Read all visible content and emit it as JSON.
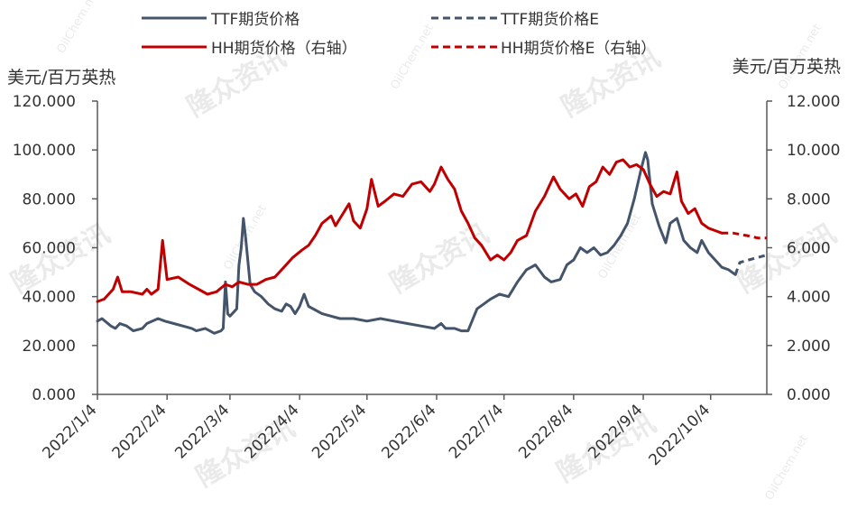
{
  "chart_data": {
    "type": "line",
    "left_axis_title": "美元/百万英热",
    "right_axis_title": "美元/百万英热",
    "left_ylim": [
      0,
      120
    ],
    "right_ylim": [
      0,
      12
    ],
    "left_ticks": [
      "0.000",
      "20.000",
      "40.000",
      "60.000",
      "80.000",
      "100.000",
      "120.000"
    ],
    "right_ticks": [
      "0.000",
      "2.000",
      "4.000",
      "6.000",
      "8.000",
      "10.000",
      "12.000"
    ],
    "x_range": [
      "2022-01-04",
      "2022-10-29"
    ],
    "x_tick_labels": [
      "2022/1/4",
      "2022/2/4",
      "2022/3/4",
      "2022/4/4",
      "2022/5/4",
      "2022/6/4",
      "2022/7/4",
      "2022/8/4",
      "2022/9/4",
      "2022/10/4"
    ],
    "x_tick_dates": [
      "2022-01-04",
      "2022-02-04",
      "2022-03-04",
      "2022-04-04",
      "2022-05-04",
      "2022-06-04",
      "2022-07-04",
      "2022-08-04",
      "2022-09-04",
      "2022-10-04"
    ],
    "grid": false,
    "legend_position": "top",
    "series": [
      {
        "name": "TTF期货价格",
        "axis": "left",
        "color": "#44546a",
        "style": "solid",
        "points": [
          [
            "2022-01-04",
            30
          ],
          [
            "2022-01-06",
            31
          ],
          [
            "2022-01-10",
            28
          ],
          [
            "2022-01-12",
            27
          ],
          [
            "2022-01-14",
            29
          ],
          [
            "2022-01-17",
            28
          ],
          [
            "2022-01-20",
            26
          ],
          [
            "2022-01-24",
            27
          ],
          [
            "2022-01-26",
            29
          ],
          [
            "2022-01-31",
            31
          ],
          [
            "2022-02-03",
            30
          ],
          [
            "2022-02-07",
            29
          ],
          [
            "2022-02-11",
            28
          ],
          [
            "2022-02-15",
            27
          ],
          [
            "2022-02-17",
            26
          ],
          [
            "2022-02-21",
            27
          ],
          [
            "2022-02-23",
            26
          ],
          [
            "2022-02-25",
            25
          ],
          [
            "2022-02-28",
            26
          ],
          [
            "2022-03-01",
            27
          ],
          [
            "2022-03-02",
            46
          ],
          [
            "2022-03-03",
            33
          ],
          [
            "2022-03-04",
            32
          ],
          [
            "2022-03-07",
            35
          ],
          [
            "2022-03-08",
            53
          ],
          [
            "2022-03-09",
            60
          ],
          [
            "2022-03-10",
            72
          ],
          [
            "2022-03-11",
            64
          ],
          [
            "2022-03-13",
            45
          ],
          [
            "2022-03-15",
            42
          ],
          [
            "2022-03-18",
            40
          ],
          [
            "2022-03-21",
            37
          ],
          [
            "2022-03-24",
            35
          ],
          [
            "2022-03-27",
            34
          ],
          [
            "2022-03-29",
            37
          ],
          [
            "2022-03-31",
            36
          ],
          [
            "2022-04-02",
            33
          ],
          [
            "2022-04-04",
            36
          ],
          [
            "2022-04-06",
            41
          ],
          [
            "2022-04-08",
            36
          ],
          [
            "2022-04-14",
            33
          ],
          [
            "2022-04-18",
            32
          ],
          [
            "2022-04-22",
            31
          ],
          [
            "2022-04-28",
            31
          ],
          [
            "2022-05-04",
            30
          ],
          [
            "2022-05-10",
            31
          ],
          [
            "2022-05-16",
            30
          ],
          [
            "2022-05-22",
            29
          ],
          [
            "2022-05-28",
            28
          ],
          [
            "2022-06-03",
            27
          ],
          [
            "2022-06-06",
            29
          ],
          [
            "2022-06-08",
            27
          ],
          [
            "2022-06-12",
            27
          ],
          [
            "2022-06-15",
            26
          ],
          [
            "2022-06-18",
            26
          ],
          [
            "2022-06-22",
            35
          ],
          [
            "2022-06-25",
            37
          ],
          [
            "2022-06-28",
            39
          ],
          [
            "2022-07-02",
            41
          ],
          [
            "2022-07-06",
            40
          ],
          [
            "2022-07-10",
            46
          ],
          [
            "2022-07-14",
            51
          ],
          [
            "2022-07-18",
            53
          ],
          [
            "2022-07-22",
            48
          ],
          [
            "2022-07-25",
            46
          ],
          [
            "2022-07-29",
            47
          ],
          [
            "2022-08-01",
            53
          ],
          [
            "2022-08-04",
            55
          ],
          [
            "2022-08-07",
            60
          ],
          [
            "2022-08-10",
            58
          ],
          [
            "2022-08-13",
            60
          ],
          [
            "2022-08-16",
            57
          ],
          [
            "2022-08-19",
            58
          ],
          [
            "2022-08-22",
            61
          ],
          [
            "2022-08-25",
            65
          ],
          [
            "2022-08-28",
            70
          ],
          [
            "2022-08-31",
            80
          ],
          [
            "2022-09-03",
            92
          ],
          [
            "2022-09-05",
            99
          ],
          [
            "2022-09-06",
            96
          ],
          [
            "2022-09-08",
            78
          ],
          [
            "2022-09-11",
            69
          ],
          [
            "2022-09-14",
            62
          ],
          [
            "2022-09-16",
            70
          ],
          [
            "2022-09-19",
            72
          ],
          [
            "2022-09-22",
            63
          ],
          [
            "2022-09-25",
            60
          ],
          [
            "2022-09-28",
            58
          ],
          [
            "2022-09-30",
            63
          ],
          [
            "2022-10-03",
            58
          ],
          [
            "2022-10-06",
            55
          ],
          [
            "2022-10-09",
            52
          ],
          [
            "2022-10-12",
            51
          ],
          [
            "2022-10-15",
            49
          ]
        ]
      },
      {
        "name": "TTF期货价格E",
        "axis": "left",
        "color": "#44546a",
        "style": "dashed",
        "points": [
          [
            "2022-10-15",
            49
          ],
          [
            "2022-10-17",
            54
          ],
          [
            "2022-10-21",
            55
          ],
          [
            "2022-10-25",
            56
          ],
          [
            "2022-10-29",
            57
          ]
        ]
      },
      {
        "name": "HH期货价格（右轴）",
        "axis": "right",
        "color": "#c00000",
        "style": "solid",
        "points": [
          [
            "2022-01-04",
            3.8
          ],
          [
            "2022-01-07",
            3.9
          ],
          [
            "2022-01-11",
            4.3
          ],
          [
            "2022-01-13",
            4.8
          ],
          [
            "2022-01-15",
            4.2
          ],
          [
            "2022-01-19",
            4.2
          ],
          [
            "2022-01-24",
            4.1
          ],
          [
            "2022-01-26",
            4.3
          ],
          [
            "2022-01-28",
            4.1
          ],
          [
            "2022-01-31",
            4.3
          ],
          [
            "2022-02-02",
            6.3
          ],
          [
            "2022-02-04",
            4.7
          ],
          [
            "2022-02-09",
            4.8
          ],
          [
            "2022-02-14",
            4.5
          ],
          [
            "2022-02-18",
            4.3
          ],
          [
            "2022-02-22",
            4.1
          ],
          [
            "2022-02-26",
            4.2
          ],
          [
            "2022-03-02",
            4.5
          ],
          [
            "2022-03-05",
            4.4
          ],
          [
            "2022-03-08",
            4.6
          ],
          [
            "2022-03-12",
            4.5
          ],
          [
            "2022-03-16",
            4.5
          ],
          [
            "2022-03-20",
            4.7
          ],
          [
            "2022-03-24",
            4.8
          ],
          [
            "2022-03-28",
            5.2
          ],
          [
            "2022-04-01",
            5.6
          ],
          [
            "2022-04-05",
            5.9
          ],
          [
            "2022-04-08",
            6.1
          ],
          [
            "2022-04-11",
            6.5
          ],
          [
            "2022-04-14",
            7.0
          ],
          [
            "2022-04-18",
            7.3
          ],
          [
            "2022-04-20",
            6.9
          ],
          [
            "2022-04-22",
            7.2
          ],
          [
            "2022-04-26",
            7.8
          ],
          [
            "2022-04-28",
            7.1
          ],
          [
            "2022-05-01",
            6.8
          ],
          [
            "2022-05-04",
            7.6
          ],
          [
            "2022-05-06",
            8.8
          ],
          [
            "2022-05-09",
            7.7
          ],
          [
            "2022-05-12",
            7.9
          ],
          [
            "2022-05-16",
            8.2
          ],
          [
            "2022-05-20",
            8.1
          ],
          [
            "2022-05-24",
            8.6
          ],
          [
            "2022-05-28",
            8.7
          ],
          [
            "2022-06-01",
            8.3
          ],
          [
            "2022-06-03",
            8.6
          ],
          [
            "2022-06-06",
            9.3
          ],
          [
            "2022-06-09",
            8.8
          ],
          [
            "2022-06-12",
            8.4
          ],
          [
            "2022-06-15",
            7.5
          ],
          [
            "2022-06-18",
            7.0
          ],
          [
            "2022-06-21",
            6.4
          ],
          [
            "2022-06-24",
            6.1
          ],
          [
            "2022-06-28",
            5.5
          ],
          [
            "2022-07-01",
            5.7
          ],
          [
            "2022-07-04",
            5.5
          ],
          [
            "2022-07-07",
            5.8
          ],
          [
            "2022-07-10",
            6.3
          ],
          [
            "2022-07-14",
            6.5
          ],
          [
            "2022-07-18",
            7.5
          ],
          [
            "2022-07-22",
            8.1
          ],
          [
            "2022-07-26",
            8.9
          ],
          [
            "2022-07-29",
            8.4
          ],
          [
            "2022-08-02",
            8.0
          ],
          [
            "2022-08-05",
            8.2
          ],
          [
            "2022-08-08",
            7.7
          ],
          [
            "2022-08-11",
            8.5
          ],
          [
            "2022-08-14",
            8.7
          ],
          [
            "2022-08-17",
            9.3
          ],
          [
            "2022-08-20",
            9.0
          ],
          [
            "2022-08-23",
            9.5
          ],
          [
            "2022-08-26",
            9.6
          ],
          [
            "2022-08-29",
            9.3
          ],
          [
            "2022-09-01",
            9.4
          ],
          [
            "2022-09-04",
            9.2
          ],
          [
            "2022-09-07",
            8.6
          ],
          [
            "2022-09-10",
            8.1
          ],
          [
            "2022-09-13",
            8.3
          ],
          [
            "2022-09-16",
            8.2
          ],
          [
            "2022-09-19",
            9.1
          ],
          [
            "2022-09-21",
            7.9
          ],
          [
            "2022-09-24",
            7.4
          ],
          [
            "2022-09-27",
            7.6
          ],
          [
            "2022-09-30",
            7.0
          ],
          [
            "2022-10-03",
            6.8
          ],
          [
            "2022-10-06",
            6.7
          ],
          [
            "2022-10-09",
            6.6
          ]
        ]
      },
      {
        "name": "HH期货价格E（右轴）",
        "axis": "right",
        "color": "#c00000",
        "style": "dashed",
        "points": [
          [
            "2022-10-09",
            6.6
          ],
          [
            "2022-10-14",
            6.6
          ],
          [
            "2022-10-20",
            6.5
          ],
          [
            "2022-10-25",
            6.4
          ],
          [
            "2022-10-29",
            6.4
          ]
        ]
      }
    ]
  },
  "watermarks": [
    "隆众资讯",
    "OilChem.net"
  ]
}
